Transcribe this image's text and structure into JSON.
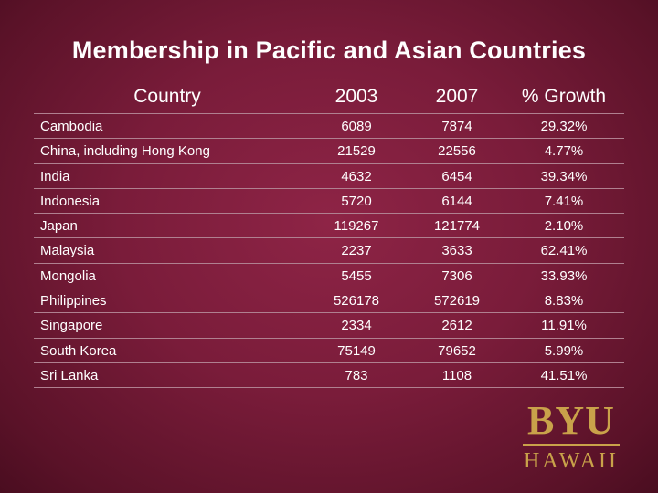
{
  "header": {
    "title": "Membership in Pacific and Asian Countries"
  },
  "table": {
    "columns": [
      "Country",
      "2003",
      "2007",
      "% Growth"
    ],
    "rows": [
      [
        "Cambodia",
        "6089",
        "7874",
        "29.32%"
      ],
      [
        "China, including Hong Kong",
        "21529",
        "22556",
        "4.77%"
      ],
      [
        "India",
        "4632",
        "6454",
        "39.34%"
      ],
      [
        "Indonesia",
        "5720",
        "6144",
        "7.41%"
      ],
      [
        "Japan",
        "119267",
        "121774",
        "2.10%"
      ],
      [
        "Malaysia",
        "2237",
        "3633",
        "62.41%"
      ],
      [
        "Mongolia",
        "5455",
        "7306",
        "33.93%"
      ],
      [
        "Philippines",
        "526178",
        "572619",
        "8.83%"
      ],
      [
        "Singapore",
        "2334",
        "2612",
        "11.91%"
      ],
      [
        "South Korea",
        "75149",
        "79652",
        "5.99%"
      ],
      [
        "Sri Lanka",
        "783",
        "1108",
        "41.51%"
      ]
    ]
  },
  "logo": {
    "name": "BYU",
    "place": "HAWAII"
  }
}
